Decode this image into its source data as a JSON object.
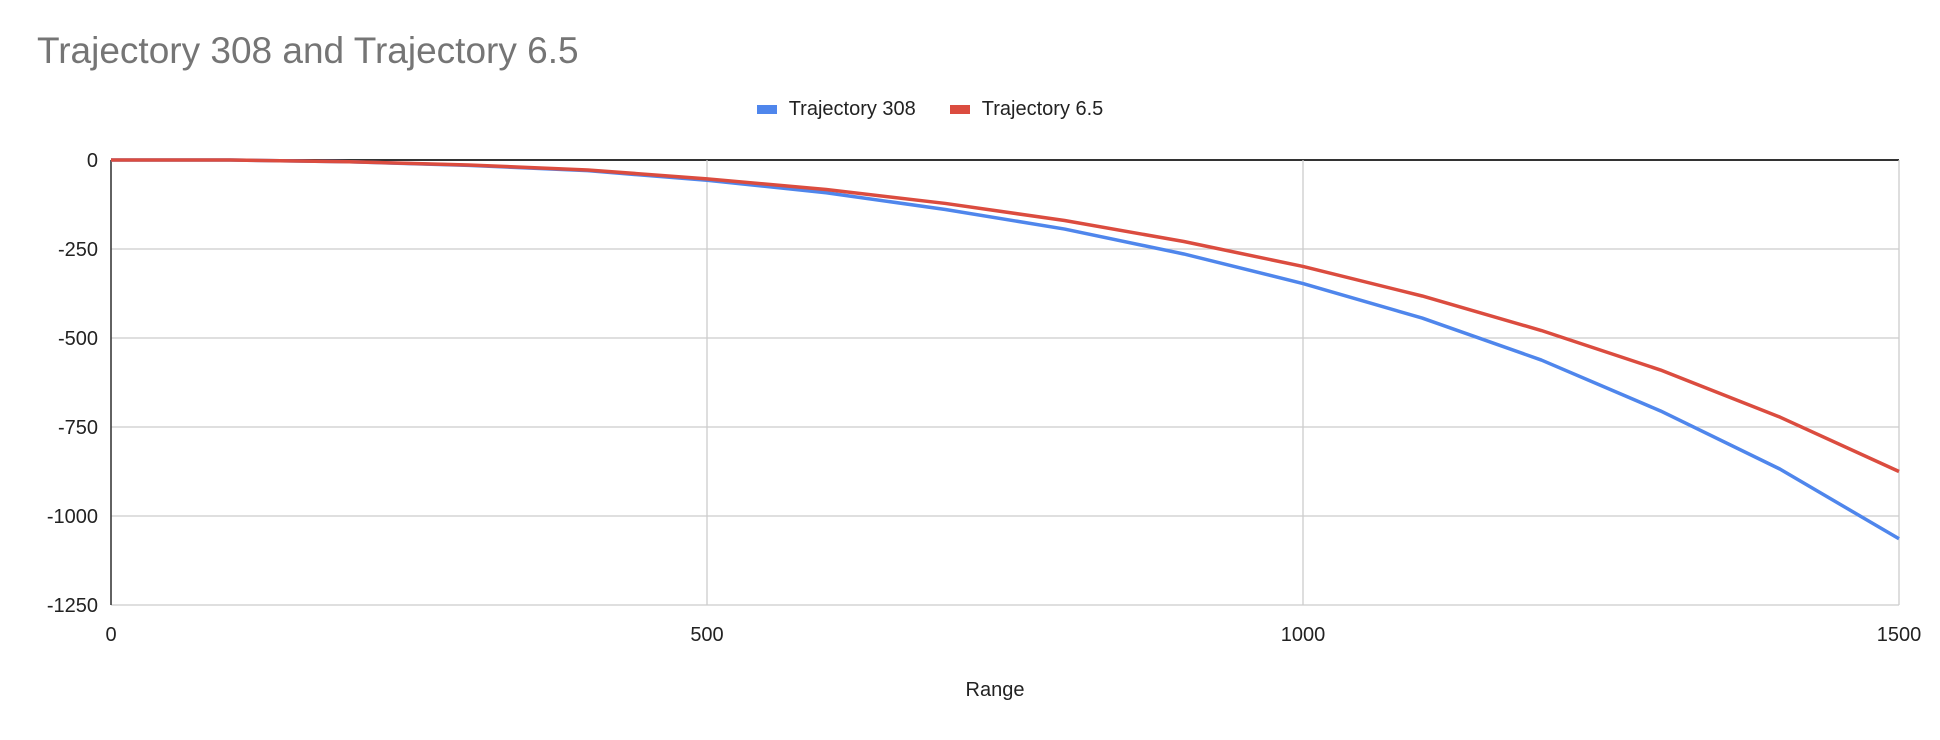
{
  "chart_data": {
    "type": "line",
    "title": "Trajectory 308 and Trajectory 6.5",
    "xlabel": "Range",
    "ylabel": "",
    "xlim": [
      0,
      1500
    ],
    "ylim": [
      -1250,
      0
    ],
    "xticks": [
      "0",
      "500",
      "1000",
      "1500"
    ],
    "yticks": [
      "0",
      "-250",
      "-500",
      "-750",
      "-1000",
      "-1250"
    ],
    "grid": true,
    "legend": "top-center",
    "x": [
      0,
      100,
      200,
      300,
      400,
      500,
      600,
      700,
      800,
      900,
      1000,
      1100,
      1200,
      1300,
      1400,
      1500
    ],
    "series": [
      {
        "name": "Trajectory 308",
        "color": "#4f86ec",
        "values": [
          0,
          0,
          -5,
          -15,
          -30,
          -57,
          -92,
          -139,
          -194,
          -264,
          -347,
          -444,
          -562,
          -705,
          -868,
          -1064
        ]
      },
      {
        "name": "Trajectory 6.5",
        "color": "#db4c3f",
        "values": [
          0,
          0,
          -5,
          -14,
          -28,
          -53,
          -83,
          -122,
          -170,
          -229,
          -299,
          -382,
          -479,
          -590,
          -722,
          -875
        ]
      }
    ]
  }
}
